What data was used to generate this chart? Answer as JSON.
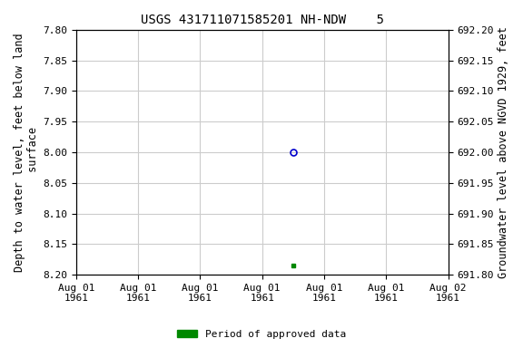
{
  "title": "USGS 431711071585201 NH-NDW    5",
  "ylabel_left": "Depth to water level, feet below land\n surface",
  "ylabel_right": "Groundwater level above NGVD 1929, feet",
  "ylim_left": [
    7.8,
    8.2
  ],
  "ylim_right": [
    691.8,
    692.2
  ],
  "yticks_left": [
    7.8,
    7.85,
    7.9,
    7.95,
    8.0,
    8.05,
    8.1,
    8.15,
    8.2
  ],
  "yticks_right": [
    691.8,
    691.85,
    691.9,
    691.95,
    692.0,
    692.05,
    692.1,
    692.15,
    692.2
  ],
  "data_point_circle": {
    "x": 3.5,
    "value": 8.0,
    "color": "#0000cc",
    "marker": "o",
    "markersize": 5,
    "fillstyle": "none"
  },
  "data_point_square": {
    "x": 3.5,
    "value": 8.185,
    "color": "#008800",
    "marker": "s",
    "markersize": 3,
    "fillstyle": "full"
  },
  "x_min": 0,
  "x_max": 6,
  "xtick_positions": [
    0,
    1,
    2,
    3,
    4,
    5,
    6
  ],
  "xtick_labels": [
    "Aug 01\n1961",
    "Aug 01\n1961",
    "Aug 01\n1961",
    "Aug 01\n1961",
    "Aug 01\n1961",
    "Aug 01\n1961",
    "Aug 02\n1961"
  ],
  "background_color": "#ffffff",
  "grid_color": "#cccccc",
  "legend_label": "Period of approved data",
  "legend_color": "#008800",
  "title_fontsize": 10,
  "axis_label_fontsize": 8.5,
  "tick_fontsize": 8,
  "font_family": "monospace"
}
